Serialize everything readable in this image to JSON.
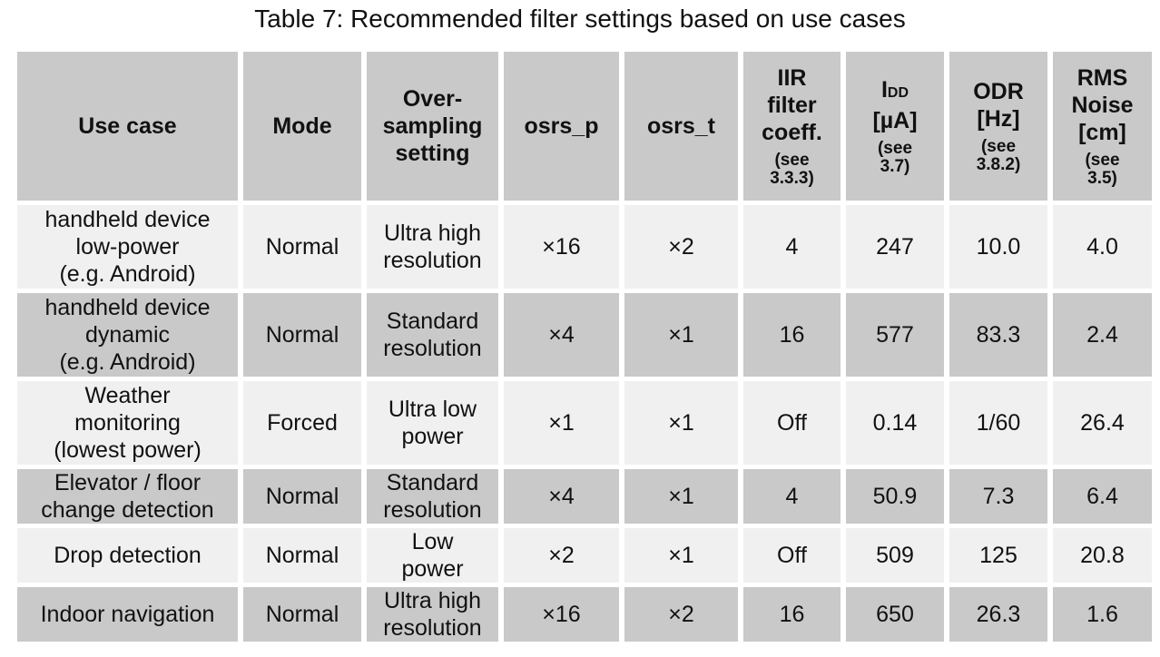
{
  "caption": "Table 7: Recommended filter settings based on use cases",
  "headers": {
    "use_case": "Use case",
    "mode": "Mode",
    "oversampling": [
      "Over-",
      "sampling",
      "setting"
    ],
    "osrs_p": "osrs_p",
    "osrs_t": "osrs_t",
    "iir": {
      "lines": [
        "IIR",
        "filter",
        "coeff."
      ],
      "note": [
        "(see",
        "3.3.3)"
      ]
    },
    "idd": {
      "main": "I",
      "sub": "DD",
      "unit": "[µA]",
      "note": [
        "(see",
        "3.7)"
      ]
    },
    "odr": {
      "lines": [
        "ODR",
        "[Hz]"
      ],
      "note": [
        "(see",
        "3.8.2)"
      ]
    },
    "rms": {
      "lines": [
        "RMS",
        "Noise",
        "[cm]"
      ],
      "note": [
        "(see",
        "3.5)"
      ]
    }
  },
  "rows": [
    {
      "use_case": [
        "handheld device",
        "low-power",
        "(e.g. Android)"
      ],
      "mode": "Normal",
      "oversampling": [
        "Ultra high",
        "resolution"
      ],
      "osrs_p": "×16",
      "osrs_t": "×2",
      "iir": "4",
      "idd": "247",
      "odr": "10.0",
      "rms": "4.0"
    },
    {
      "use_case": [
        "handheld device",
        "dynamic",
        "(e.g. Android)"
      ],
      "mode": "Normal",
      "oversampling": [
        "Standard",
        "resolution"
      ],
      "osrs_p": "×4",
      "osrs_t": "×1",
      "iir": "16",
      "idd": "577",
      "odr": "83.3",
      "rms": "2.4"
    },
    {
      "use_case": [
        "Weather",
        "monitoring",
        "(lowest power)"
      ],
      "mode": "Forced",
      "oversampling": [
        "Ultra low",
        "power"
      ],
      "osrs_p": "×1",
      "osrs_t": "×1",
      "iir": "Off",
      "idd": "0.14",
      "odr": "1/60",
      "rms": "26.4"
    },
    {
      "use_case": [
        "Elevator / floor",
        "change detection"
      ],
      "mode": "Normal",
      "oversampling": [
        "Standard",
        "resolution"
      ],
      "osrs_p": "×4",
      "osrs_t": "×1",
      "iir": "4",
      "idd": "50.9",
      "odr": "7.3",
      "rms": "6.4"
    },
    {
      "use_case": [
        "Drop detection"
      ],
      "mode": "Normal",
      "oversampling": [
        "Low",
        "power"
      ],
      "osrs_p": "×2",
      "osrs_t": "×1",
      "iir": "Off",
      "idd": "509",
      "odr": "125",
      "rms": "20.8"
    },
    {
      "use_case": [
        "Indoor navigation"
      ],
      "mode": "Normal",
      "oversampling": [
        "Ultra high",
        "resolution"
      ],
      "osrs_p": "×16",
      "osrs_t": "×2",
      "iir": "16",
      "idd": "650",
      "odr": "26.3",
      "rms": "1.6"
    }
  ]
}
